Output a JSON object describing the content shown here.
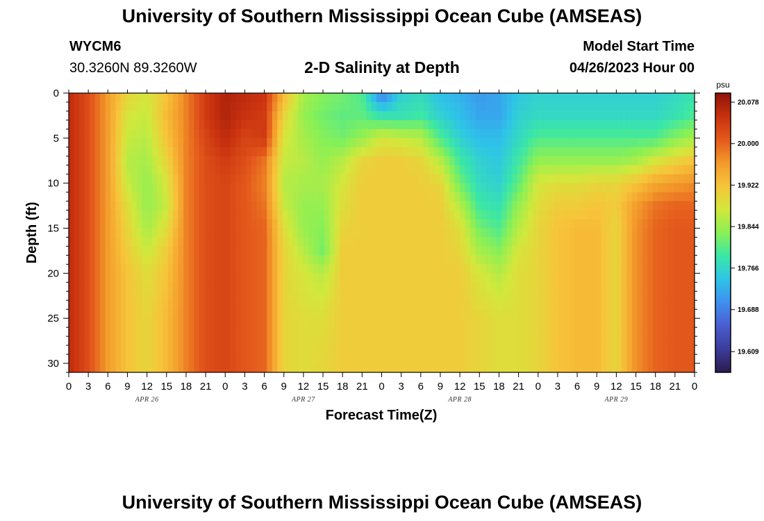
{
  "title": "University of Southern Mississippi Ocean Cube (AMSEAS)",
  "footer_title": "University of Southern Mississippi Ocean Cube (AMSEAS)",
  "station": {
    "id": "WYCM6",
    "coords": "30.3260N  89.3260W"
  },
  "model_start": {
    "label": "Model Start Time",
    "value": "04/26/2023 Hour 00"
  },
  "chart_data": {
    "type": "heatmap",
    "title": "2-D Salinity at Depth",
    "xlabel": "Forecast Time(Z)",
    "ylabel": "Depth (ft)",
    "x_range_hours": [
      0,
      96
    ],
    "ylim": [
      0,
      31
    ],
    "y_ticks": [
      0,
      5,
      10,
      15,
      20,
      25,
      30
    ],
    "x_tick_labels": [
      "0",
      "3",
      "6",
      "9",
      "12",
      "15",
      "18",
      "21",
      "0",
      "3",
      "6",
      "9",
      "12",
      "15",
      "18",
      "21",
      "0",
      "3",
      "6",
      "9",
      "12",
      "15",
      "18",
      "21",
      "0",
      "3",
      "6",
      "9",
      "12",
      "15",
      "18",
      "21",
      "0"
    ],
    "date_labels": [
      {
        "label": "APR 26",
        "hour": 12
      },
      {
        "label": "APR 27",
        "hour": 36
      },
      {
        "label": "APR 28",
        "hour": 60
      },
      {
        "label": "APR 29",
        "hour": 84
      }
    ],
    "colorbar": {
      "unit": "psu",
      "min": 19.57,
      "max": 20.095,
      "tick_labels": [
        "20.078",
        "20.000",
        "19.922",
        "19.844",
        "19.766",
        "19.688",
        "19.609"
      ],
      "colors": [
        "#2d1b4e",
        "#3b3c9a",
        "#4a5ed0",
        "#3f8fef",
        "#2ec4e8",
        "#3be7a6",
        "#8af055",
        "#d2e83c",
        "#f7c43a",
        "#f39a2b",
        "#e4591c",
        "#c8310f",
        "#8f1308"
      ]
    },
    "depths_ft": [
      0,
      2.5,
      5,
      7.5,
      10,
      12.5,
      15,
      17.5,
      20,
      25,
      31
    ],
    "times_hours": [
      0,
      3,
      6,
      9,
      12,
      15,
      18,
      21,
      24,
      27,
      30,
      33,
      36,
      39,
      42,
      45,
      48,
      51,
      54,
      57,
      60,
      63,
      66,
      69,
      72,
      75,
      78,
      81,
      84,
      87,
      90,
      93,
      96
    ],
    "salinity_psu": [
      [
        20.06,
        20.06,
        20.06,
        20.06,
        20.06,
        20.06,
        20.06,
        20.06,
        20.06,
        20.06,
        20.06
      ],
      [
        20.02,
        20.02,
        20.02,
        20.02,
        20.02,
        20.02,
        20.02,
        20.02,
        20.02,
        20.02,
        20.02
      ],
      [
        19.96,
        19.96,
        19.96,
        19.96,
        19.96,
        19.96,
        19.96,
        19.96,
        19.96,
        19.96,
        19.96
      ],
      [
        19.9,
        19.88,
        19.87,
        19.86,
        19.87,
        19.89,
        19.9,
        19.91,
        19.92,
        19.92,
        19.92
      ],
      [
        19.88,
        19.87,
        19.86,
        19.85,
        19.84,
        19.84,
        19.85,
        19.87,
        19.89,
        19.9,
        19.9
      ],
      [
        19.92,
        19.93,
        19.92,
        19.9,
        19.88,
        19.87,
        19.89,
        19.91,
        19.92,
        19.93,
        19.93
      ],
      [
        19.98,
        19.98,
        19.98,
        19.98,
        19.98,
        19.98,
        19.98,
        19.98,
        19.98,
        19.98,
        19.98
      ],
      [
        20.04,
        20.04,
        20.03,
        20.02,
        20.02,
        20.02,
        20.02,
        20.02,
        20.02,
        20.02,
        20.02
      ],
      [
        20.07,
        20.07,
        20.06,
        20.04,
        20.03,
        20.03,
        20.03,
        20.03,
        20.03,
        20.03,
        20.03
      ],
      [
        20.06,
        20.05,
        20.03,
        20.02,
        20.01,
        20.01,
        20.01,
        20.01,
        20.01,
        20.01,
        20.01
      ],
      [
        20.05,
        20.04,
        20.04,
        19.99,
        19.98,
        19.99,
        20.0,
        20.0,
        20.0,
        20.0,
        20.0
      ],
      [
        19.93,
        19.9,
        19.88,
        19.87,
        19.86,
        19.87,
        19.89,
        19.9,
        19.9,
        19.9,
        19.9
      ],
      [
        19.85,
        19.84,
        19.85,
        19.86,
        19.85,
        19.84,
        19.84,
        19.86,
        19.88,
        19.89,
        19.89
      ],
      [
        19.83,
        19.82,
        19.83,
        19.84,
        19.85,
        19.84,
        19.83,
        19.82,
        19.86,
        19.89,
        19.9
      ],
      [
        19.82,
        19.81,
        19.82,
        19.86,
        19.88,
        19.89,
        19.9,
        19.91,
        19.91,
        19.91,
        19.91
      ],
      [
        19.8,
        19.81,
        19.84,
        19.9,
        19.91,
        19.91,
        19.91,
        19.91,
        19.91,
        19.91,
        19.91
      ],
      [
        19.68,
        19.78,
        19.88,
        19.91,
        19.91,
        19.91,
        19.91,
        19.91,
        19.91,
        19.91,
        19.91
      ],
      [
        19.76,
        19.78,
        19.87,
        19.91,
        19.91,
        19.91,
        19.91,
        19.91,
        19.91,
        19.91,
        19.91
      ],
      [
        19.77,
        19.79,
        19.86,
        19.9,
        19.91,
        19.91,
        19.91,
        19.91,
        19.91,
        19.91,
        19.91
      ],
      [
        19.74,
        19.76,
        19.8,
        19.86,
        19.9,
        19.91,
        19.91,
        19.91,
        19.91,
        19.91,
        19.91
      ],
      [
        19.73,
        19.74,
        19.76,
        19.79,
        19.82,
        19.86,
        19.89,
        19.9,
        19.91,
        19.91,
        19.91
      ],
      [
        19.71,
        19.72,
        19.74,
        19.76,
        19.77,
        19.79,
        19.82,
        19.85,
        19.88,
        19.9,
        19.9
      ],
      [
        19.72,
        19.72,
        19.74,
        19.75,
        19.76,
        19.78,
        19.8,
        19.83,
        19.86,
        19.89,
        19.89
      ],
      [
        19.75,
        19.76,
        19.77,
        19.79,
        19.81,
        19.84,
        19.86,
        19.88,
        19.89,
        19.89,
        19.89
      ],
      [
        19.76,
        19.77,
        19.8,
        19.84,
        19.88,
        19.89,
        19.9,
        19.9,
        19.9,
        19.9,
        19.9
      ],
      [
        19.76,
        19.77,
        19.8,
        19.84,
        19.89,
        19.91,
        19.92,
        19.92,
        19.92,
        19.92,
        19.92
      ],
      [
        19.76,
        19.77,
        19.8,
        19.84,
        19.89,
        19.91,
        19.93,
        19.93,
        19.93,
        19.93,
        19.93
      ],
      [
        19.76,
        19.77,
        19.8,
        19.84,
        19.9,
        19.92,
        19.93,
        19.93,
        19.93,
        19.93,
        19.93
      ],
      [
        19.76,
        19.77,
        19.8,
        19.84,
        19.9,
        19.91,
        19.9,
        19.9,
        19.9,
        19.9,
        19.9
      ],
      [
        19.76,
        19.77,
        19.8,
        19.85,
        19.92,
        19.96,
        19.97,
        19.97,
        19.97,
        19.97,
        19.97
      ],
      [
        19.76,
        19.77,
        19.8,
        19.88,
        19.95,
        19.99,
        20.0,
        20.0,
        20.0,
        20.0,
        20.0
      ],
      [
        19.77,
        19.78,
        19.83,
        19.9,
        19.96,
        20.0,
        20.01,
        20.01,
        20.01,
        20.01,
        20.01
      ],
      [
        19.78,
        19.8,
        19.85,
        19.92,
        19.97,
        20.0,
        20.01,
        20.01,
        20.01,
        20.01,
        20.01
      ]
    ]
  }
}
